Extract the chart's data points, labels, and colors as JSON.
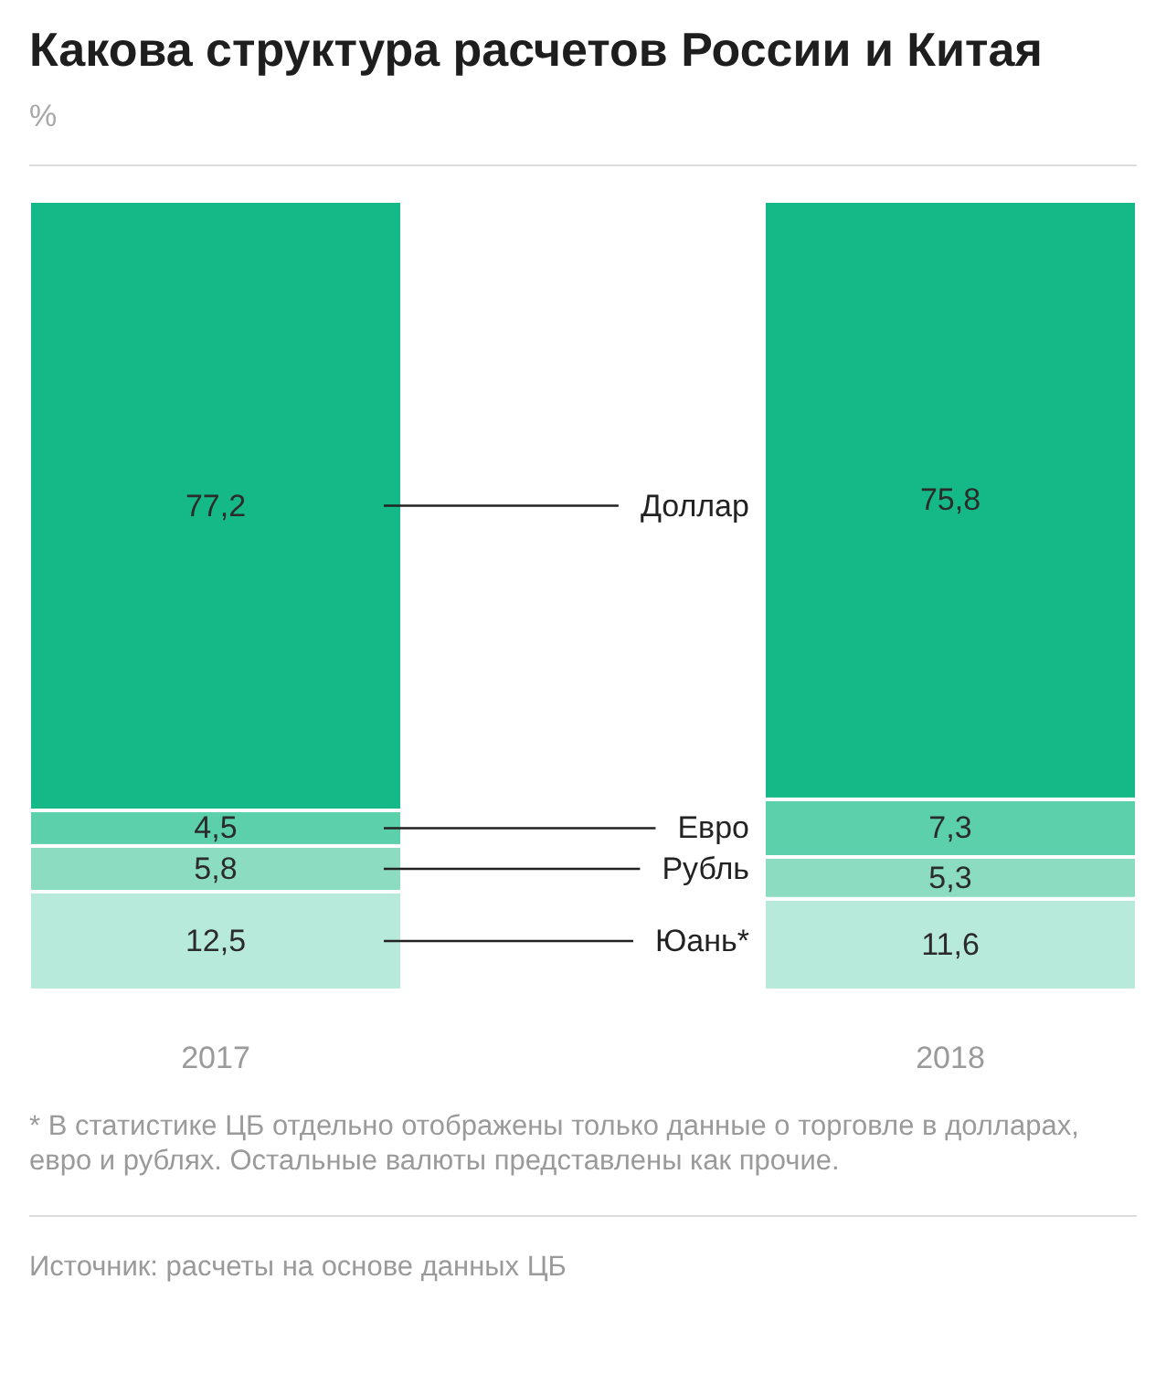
{
  "chart_data": {
    "type": "bar",
    "title": "Какова структура расчетов России и Китая",
    "subtitle": "%",
    "categories": [
      "2017",
      "2018"
    ],
    "stacked": true,
    "series": [
      {
        "name": "Юань*",
        "color": "#b7eadb",
        "values": [
          12.5,
          11.6
        ],
        "value_labels": [
          "12,5",
          "11,6"
        ]
      },
      {
        "name": "Рубль",
        "color": "#8cdcc2",
        "values": [
          5.8,
          5.3
        ],
        "value_labels": [
          "5,8",
          "5,3"
        ]
      },
      {
        "name": "Евро",
        "color": "#5ccfab",
        "values": [
          4.5,
          7.3
        ],
        "value_labels": [
          "4,5",
          "7,3"
        ]
      },
      {
        "name": "Доллар",
        "color": "#14b987",
        "values": [
          77.2,
          75.8
        ],
        "value_labels": [
          "77,2",
          "75,8"
        ]
      }
    ],
    "annotations": [
      "* В статистике ЦБ отдельно отображены только данные о торговле в долларах, евро и рублях. Остальные валюты представлены как прочие.",
      "Источник: расчеты на основе данных ЦБ"
    ]
  }
}
